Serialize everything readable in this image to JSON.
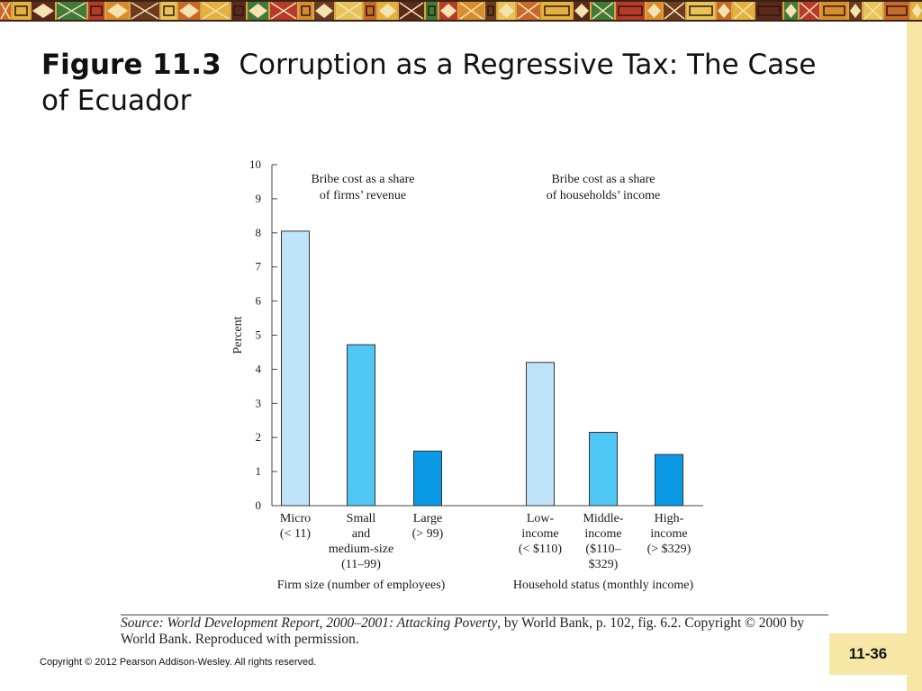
{
  "slide": {
    "title_number": "Figure 11.3",
    "title_text": "Corruption as a Regressive Tax: The Case of Ecuador",
    "source": {
      "prefix": "Source:",
      "italic": "World Development Report, 2000–2001: Attacking Poverty",
      "rest": ", by World Bank, p. 102, fig. 6.2. Copyright © 2000 by World Bank. Reproduced with permission."
    },
    "copyright": "Copyright © 2012 Pearson Addison-Wesley. All rights reserved.",
    "page_number": "11-36"
  },
  "colors": {
    "light_bar": "#bfe4f9",
    "medium_bar": "#4fc6f4",
    "dark_bar": "#0b9ae6",
    "side_strip": "#f6e7a6"
  },
  "chart_data": {
    "type": "bar",
    "ylabel": "Percent",
    "ylim": [
      0,
      10
    ],
    "yticks": [
      "0",
      "1",
      "2",
      "3",
      "4",
      "5",
      "6",
      "7",
      "8",
      "9",
      "10"
    ],
    "grid": false,
    "groups": [
      {
        "title_lines": [
          "Bribe cost as a share",
          "of firms’ revenue"
        ],
        "xlabel": "Firm size (number of employees)",
        "categories": [
          {
            "label_lines": [
              "Micro",
              "(< 11)"
            ],
            "value": 8.05,
            "shade": "light"
          },
          {
            "label_lines": [
              "Small",
              "and",
              "medium-size",
              "(11–99)"
            ],
            "value": 4.72,
            "shade": "medium"
          },
          {
            "label_lines": [
              "Large",
              "(> 99)"
            ],
            "value": 1.6,
            "shade": "dark"
          }
        ]
      },
      {
        "title_lines": [
          "Bribe cost as a share",
          "of households’ income"
        ],
        "xlabel": "Household status (monthly income)",
        "categories": [
          {
            "label_lines": [
              "Low-",
              "income",
              "(< $110)"
            ],
            "value": 4.2,
            "shade": "light"
          },
          {
            "label_lines": [
              "Middle-",
              "income",
              "($110–",
              "$329)"
            ],
            "value": 2.15,
            "shade": "medium"
          },
          {
            "label_lines": [
              "High-",
              "income",
              "(> $329)"
            ],
            "value": 1.5,
            "shade": "dark"
          }
        ]
      }
    ]
  }
}
